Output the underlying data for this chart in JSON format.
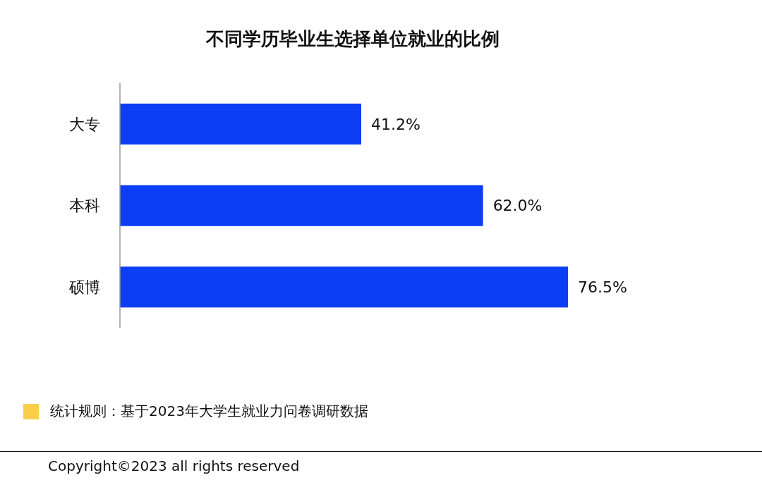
{
  "chart_data": {
    "type": "bar",
    "orientation": "horizontal",
    "title": "不同学历毕业生选择单位就业的比例",
    "categories": [
      "大专",
      "本科",
      "硕博"
    ],
    "values": [
      41.2,
      62.0,
      76.5
    ],
    "value_labels": [
      "41.2%",
      "62.0%",
      "76.5%"
    ],
    "color": "#0b3ef5",
    "annotations": [
      "统计规则：基于2023年大学生就业力问卷调研数据",
      "Copyright©2023 all rights reserved"
    ]
  }
}
